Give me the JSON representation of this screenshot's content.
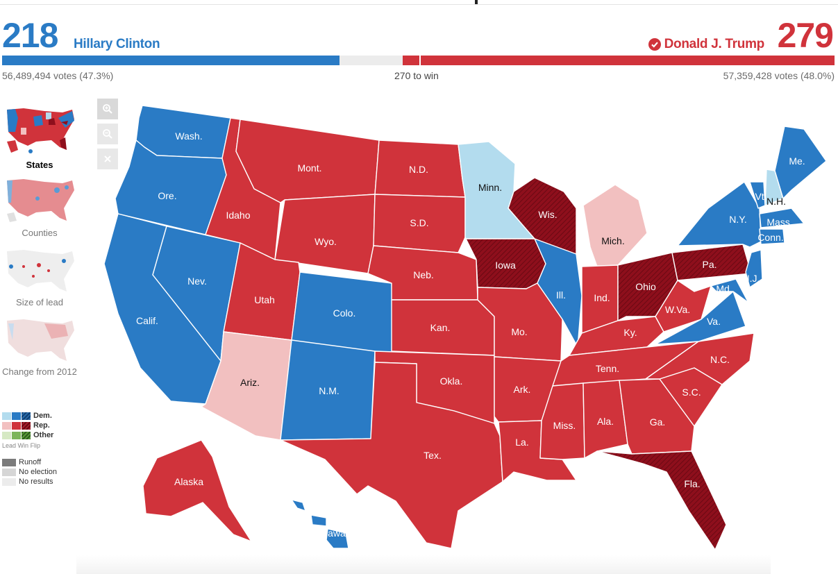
{
  "header": {
    "dem": {
      "electoral": "218",
      "name": "Hillary Clinton",
      "votes": "56,489,494 votes (47.3%)"
    },
    "rep": {
      "electoral": "279",
      "name": "Donald J. Trump",
      "votes": "57,359,428 votes (48.0%)"
    },
    "to_win": "270 to win",
    "bar": {
      "total": 538,
      "dem": 218,
      "rep": 279,
      "threshold": 270
    }
  },
  "zoom_controls": [
    "zoom-in-icon",
    "zoom-out-icon",
    "close-icon"
  ],
  "views": [
    {
      "label": "States",
      "active": true
    },
    {
      "label": "Counties",
      "active": false
    },
    {
      "label": "Size of lead",
      "active": false
    },
    {
      "label": "Change from 2012",
      "active": false
    }
  ],
  "legend": {
    "parties": [
      "Dem.",
      "Rep.",
      "Other"
    ],
    "columns": [
      "Lead",
      "Win",
      "Flip"
    ],
    "extra": [
      "Runoff",
      "No election",
      "No results"
    ]
  },
  "colors": {
    "dem_win": "#2a7bc5",
    "dem_lead": "#b3dcee",
    "rep_win": "#d0333b",
    "rep_lead": "#f2c0c0",
    "rep_flip": "#8e0f1c",
    "other_lead": "#d6e9c4",
    "other_win": "#7cb55a",
    "other_flip": "#3e7a2a"
  },
  "states": [
    {
      "label": "Wash.",
      "status": "dem_win"
    },
    {
      "label": "Ore.",
      "status": "dem_win"
    },
    {
      "label": "Calif.",
      "status": "dem_win"
    },
    {
      "label": "Nev.",
      "status": "dem_win"
    },
    {
      "label": "Idaho",
      "status": "rep_win"
    },
    {
      "label": "Mont.",
      "status": "rep_win"
    },
    {
      "label": "Wyo.",
      "status": "rep_win"
    },
    {
      "label": "Utah",
      "status": "rep_win"
    },
    {
      "label": "Colo.",
      "status": "dem_win"
    },
    {
      "label": "Ariz.",
      "status": "rep_lead"
    },
    {
      "label": "N.M.",
      "status": "dem_win"
    },
    {
      "label": "N.D.",
      "status": "rep_win"
    },
    {
      "label": "S.D.",
      "status": "rep_win"
    },
    {
      "label": "Neb.",
      "status": "rep_win"
    },
    {
      "label": "Kan.",
      "status": "rep_win"
    },
    {
      "label": "Okla.",
      "status": "rep_win"
    },
    {
      "label": "Tex.",
      "status": "rep_win"
    },
    {
      "label": "Minn.",
      "status": "dem_lead"
    },
    {
      "label": "Iowa",
      "status": "rep_flip"
    },
    {
      "label": "Mo.",
      "status": "rep_win"
    },
    {
      "label": "Ark.",
      "status": "rep_win"
    },
    {
      "label": "La.",
      "status": "rep_win"
    },
    {
      "label": "Wis.",
      "status": "rep_flip"
    },
    {
      "label": "Ill.",
      "status": "dem_win"
    },
    {
      "label": "Mich.",
      "status": "rep_lead"
    },
    {
      "label": "Ind.",
      "status": "rep_win"
    },
    {
      "label": "Ohio",
      "status": "rep_flip"
    },
    {
      "label": "Ky.",
      "status": "rep_win"
    },
    {
      "label": "Tenn.",
      "status": "rep_win"
    },
    {
      "label": "Miss.",
      "status": "rep_win"
    },
    {
      "label": "Ala.",
      "status": "rep_win"
    },
    {
      "label": "Ga.",
      "status": "rep_win"
    },
    {
      "label": "Fla.",
      "status": "rep_flip"
    },
    {
      "label": "S.C.",
      "status": "rep_win"
    },
    {
      "label": "N.C.",
      "status": "rep_win"
    },
    {
      "label": "Va.",
      "status": "dem_win"
    },
    {
      "label": "W.Va.",
      "status": "rep_win"
    },
    {
      "label": "Pa.",
      "status": "rep_flip"
    },
    {
      "label": "N.Y.",
      "status": "dem_win"
    },
    {
      "label": "Vt.",
      "status": "dem_win"
    },
    {
      "label": "N.H.",
      "status": "dem_lead"
    },
    {
      "label": "Me.",
      "status": "dem_win"
    },
    {
      "label": "Mass.",
      "status": "dem_win"
    },
    {
      "label": "Conn.",
      "status": "dem_win"
    },
    {
      "label": "N.J.",
      "status": "dem_win"
    },
    {
      "label": "Md.",
      "status": "dem_win"
    },
    {
      "label": "Alaska",
      "status": "rep_win"
    },
    {
      "label": "Hawaii",
      "status": "dem_win"
    }
  ]
}
